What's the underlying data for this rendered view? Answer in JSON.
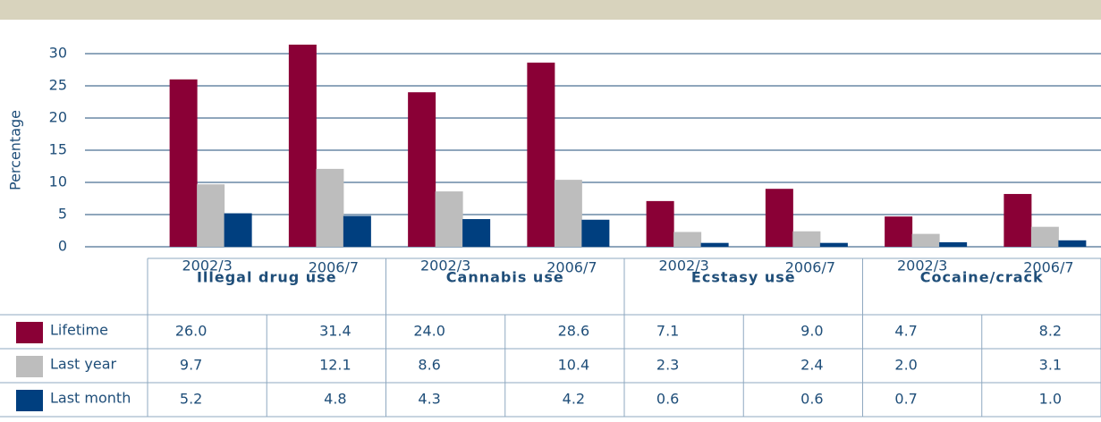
{
  "chart_data": {
    "type": "bar",
    "ylabel": "Percentage",
    "groups": [
      "Illegal drug use",
      "Cannabis use",
      "Ecstasy use",
      "Cocaine/crack"
    ],
    "categories": [
      "2002/3",
      "2006/7",
      "2002/3",
      "2006/7",
      "2002/3",
      "2006/7",
      "2002/3",
      "2006/7"
    ],
    "series": [
      {
        "name": "Lifetime",
        "color": "#8a0036",
        "values": [
          26.0,
          31.4,
          24.0,
          28.6,
          7.1,
          9.0,
          4.7,
          8.2
        ],
        "value_labels": [
          "26.0",
          "31.4",
          "24.0",
          "28.6",
          "7.1",
          "9.0",
          "4.7",
          "8.2"
        ]
      },
      {
        "name": "Last year",
        "color": "#bdbdbd",
        "values": [
          9.7,
          12.1,
          8.6,
          10.4,
          2.3,
          2.4,
          2.0,
          3.1
        ],
        "value_labels": [
          "9.7",
          "12.1",
          "8.6",
          "10.4",
          "2.3",
          "2.4",
          "2.0",
          "3.1"
        ]
      },
      {
        "name": "Last month",
        "color": "#003f7f",
        "values": [
          5.2,
          4.8,
          4.3,
          4.2,
          0.6,
          0.6,
          0.7,
          1.0
        ],
        "value_labels": [
          "5.2",
          "4.8",
          "4.3",
          "4.2",
          "0.6",
          "0.6",
          "0.7",
          "1.0"
        ]
      }
    ],
    "ylim": [
      0,
      30
    ],
    "yticks": [
      0,
      5,
      10,
      15,
      20,
      25,
      30
    ],
    "grid": true
  }
}
